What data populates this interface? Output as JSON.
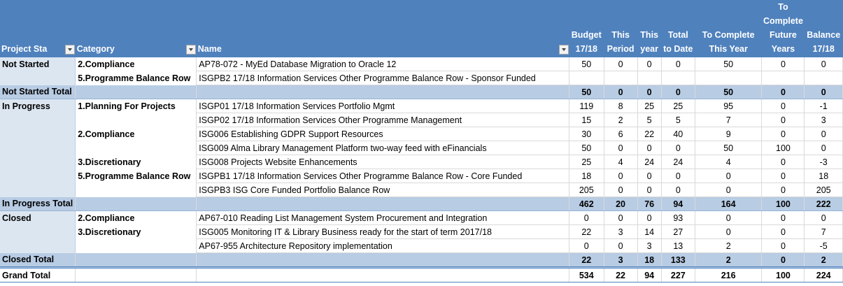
{
  "table": {
    "columns": [
      "Project Sta",
      "Category",
      "Name",
      "Budget 17/18",
      "This Period",
      "This year",
      "Total to Date",
      "To Complete This Year",
      "To Complete Future Years",
      "Balance 17/18"
    ],
    "rows": [
      {
        "status": "Not Started",
        "category": "2.Compliance",
        "name": "AP78-072 - MyEd Database Migration to Oracle 12",
        "values": [
          50,
          0,
          0,
          0,
          50,
          0,
          0
        ]
      },
      {
        "category": "5.Programme Balance Row",
        "name": "ISGPB2 17/18 Information Services Other Programme Balance Row - Sponsor Funded"
      },
      {
        "total": "Not Started Total",
        "values": [
          50,
          0,
          0,
          0,
          50,
          0,
          0
        ]
      },
      {
        "status": "In Progress",
        "category": "1.Planning For Projects",
        "name": "ISGP01 17/18 Information Services Portfolio Mgmt",
        "values": [
          119,
          8,
          25,
          25,
          95,
          0,
          -1
        ]
      },
      {
        "name": "ISGP02 17/18 Information Services Other Programme Management",
        "values": [
          15,
          2,
          5,
          5,
          7,
          0,
          3
        ]
      },
      {
        "category": "2.Compliance",
        "name": "ISG006 Establishing GDPR Support Resources",
        "values": [
          30,
          6,
          22,
          40,
          9,
          0,
          0
        ]
      },
      {
        "name": "ISG009 Alma Library Management Platform two-way feed with eFinancials",
        "values": [
          50,
          0,
          0,
          0,
          50,
          100,
          0
        ]
      },
      {
        "category": "3.Discretionary",
        "name": "ISG008 Projects Website Enhancements",
        "values": [
          25,
          4,
          24,
          24,
          4,
          0,
          -3
        ]
      },
      {
        "category": "5.Programme Balance Row",
        "name": "ISGPB1 17/18 Information Services Other Programme Balance Row - Core Funded",
        "values": [
          18,
          0,
          0,
          0,
          0,
          0,
          18
        ]
      },
      {
        "name": "ISGPB3 ISG Core Funded Portfolio Balance Row",
        "values": [
          205,
          0,
          0,
          0,
          0,
          0,
          205
        ]
      },
      {
        "total": "In Progress Total",
        "values": [
          462,
          20,
          76,
          94,
          164,
          100,
          222
        ]
      },
      {
        "status": "Closed",
        "category": "2.Compliance",
        "name": "AP67-010 Reading List Management System Procurement and Integration",
        "values": [
          0,
          0,
          0,
          93,
          0,
          0,
          0
        ]
      },
      {
        "category": "3.Discretionary",
        "name": "ISG005 Monitoring IT & Library Business ready for the start of term 2017/18",
        "values": [
          22,
          3,
          14,
          27,
          0,
          0,
          7
        ]
      },
      {
        "name": "AP67-955 Architecture Repository implementation",
        "values": [
          0,
          0,
          3,
          13,
          2,
          0,
          -5
        ]
      },
      {
        "total": "Closed Total",
        "values": [
          22,
          3,
          18,
          133,
          2,
          0,
          2
        ]
      },
      {
        "total": "Grand Total",
        "values": [
          534,
          22,
          94,
          227,
          216,
          100,
          224
        ]
      }
    ]
  }
}
